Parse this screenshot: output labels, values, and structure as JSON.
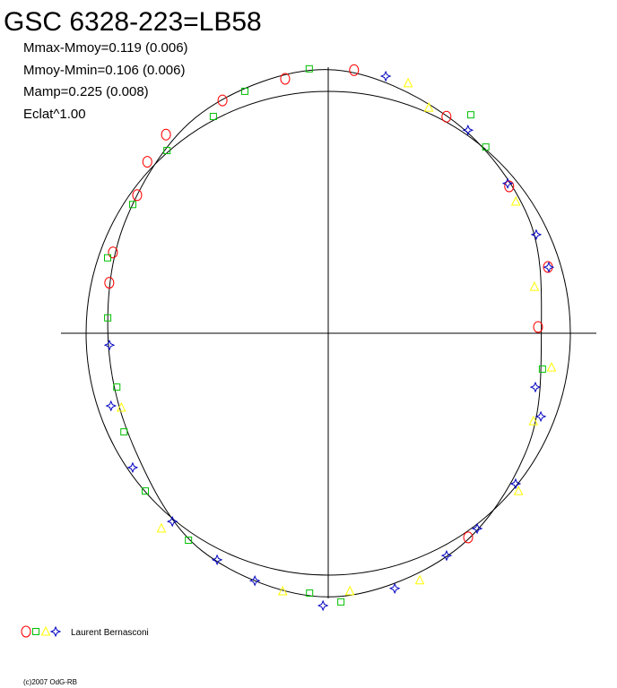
{
  "chart_data": {
    "type": "polar",
    "title": "GSC 6328-223=LB58",
    "stats": [
      "Mmax-Mmoy=0.119 (0.006)",
      "Mmoy-Mmin=0.106 (0.006)",
      "Mamp=0.225 (0.008)",
      "Eclat^1.00"
    ],
    "legend": "Laurent Bernasconi",
    "credit": "(c)2007 OdG-RB",
    "reference_radius": 1,
    "fit": {
      "color": "#000000",
      "x": [
        0,
        30,
        60,
        90,
        120,
        150,
        180,
        210,
        240,
        270,
        300,
        330
      ],
      "values": [
        1.09,
        1.02,
        0.955,
        0.88,
        0.95,
        1.04,
        1.09,
        1.04,
        0.93,
        0.91,
        0.96,
        1.05
      ]
    },
    "series": [
      {
        "marker": "circle",
        "color": "#ff0000",
        "x": [
          5.6,
          350.4,
          335.6,
          320.8,
          313.5,
          305.9,
          290.6,
          283,
          73.2,
          88.3,
          50.9,
          28.6,
          145.6
        ],
        "values": [
          1.093,
          1.067,
          1.057,
          1.06,
          1.03,
          0.974,
          0.95,
          0.928,
          0.948,
          0.867,
          0.963,
          1.02,
          1.023
        ]
      },
      {
        "marker": "square",
        "color": "#00c000",
        "x": [
          355.9,
          341,
          332.1,
          318.6,
          303.4,
          288.9,
          274,
          255.7,
          244.2,
          229.2,
          214,
          184.1,
          177.3,
          33.1,
          40.2,
          99.5
        ],
        "values": [
          1.096,
          1.058,
          1.014,
          1.007,
          0.967,
          0.963,
          0.913,
          0.901,
          0.937,
          0.998,
          1.032,
          1.077,
          1.112,
          1.078,
          1.008,
          0.897
        ]
      },
      {
        "marker": "triangle",
        "color": "#ffff00",
        "x": [
          17.7,
          24,
          54.9,
          77.3,
          98.7,
          113.2,
          129.7,
          159.7,
          175.2,
          190,
          220.5,
          250.2
        ],
        "values": [
          1.085,
          1.021,
          0.947,
          0.873,
          0.933,
          0.922,
          1.021,
          1.089,
          1.07,
          1.083,
          1.061,
          0.908
        ]
      },
      {
        "marker": "star",
        "color": "#0000c0",
        "x": [
          12.6,
          34.5,
          50.1,
          64.6,
          73.3,
          104.6,
          111.4,
          128.8,
          142.7,
          152,
          165.4,
          181.1,
          196.5,
          206.1,
          219.6,
          235.5,
          251.5,
          266.9
        ],
        "values": [
          1.089,
          1.019,
          0.966,
          0.951,
          0.951,
          0.884,
          0.943,
          0.993,
          1.015,
          1.041,
          1.09,
          1.126,
          1.067,
          1.043,
          1.01,
          0.98,
          0.946,
          0.905
        ]
      }
    ]
  }
}
